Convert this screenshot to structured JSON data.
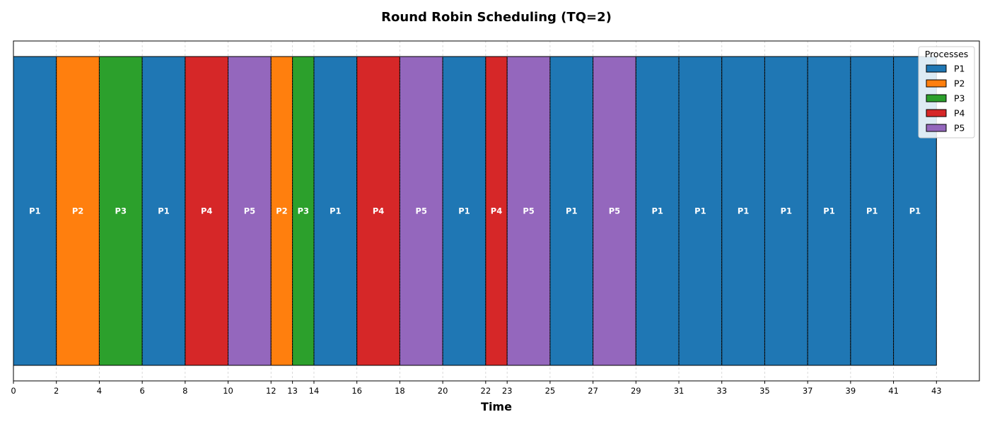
{
  "chart_data": {
    "type": "gantt",
    "title": "Round Robin Scheduling (TQ=2)",
    "xlabel": "Time",
    "ylabel": "",
    "xlim": [
      0,
      45
    ],
    "grid": true,
    "legend": {
      "title": "Processes",
      "placement": "top-right",
      "entries": [
        "P1",
        "P2",
        "P3",
        "P4",
        "P5"
      ]
    },
    "colors": {
      "P1": "#1f77b4",
      "P2": "#ff7f0e",
      "P3": "#2ca02c",
      "P4": "#d62728",
      "P5": "#9467bd"
    },
    "xticks": [
      0,
      2,
      4,
      6,
      8,
      10,
      12,
      13,
      14,
      16,
      18,
      20,
      22,
      23,
      25,
      27,
      29,
      31,
      33,
      35,
      37,
      39,
      41,
      43
    ],
    "segments": [
      {
        "process": "P1",
        "start": 0,
        "end": 2
      },
      {
        "process": "P2",
        "start": 2,
        "end": 4
      },
      {
        "process": "P3",
        "start": 4,
        "end": 6
      },
      {
        "process": "P1",
        "start": 6,
        "end": 8
      },
      {
        "process": "P4",
        "start": 8,
        "end": 10
      },
      {
        "process": "P5",
        "start": 10,
        "end": 12
      },
      {
        "process": "P2",
        "start": 12,
        "end": 13
      },
      {
        "process": "P3",
        "start": 13,
        "end": 14
      },
      {
        "process": "P1",
        "start": 14,
        "end": 16
      },
      {
        "process": "P4",
        "start": 16,
        "end": 18
      },
      {
        "process": "P5",
        "start": 18,
        "end": 20
      },
      {
        "process": "P1",
        "start": 20,
        "end": 22
      },
      {
        "process": "P4",
        "start": 22,
        "end": 23
      },
      {
        "process": "P5",
        "start": 23,
        "end": 25
      },
      {
        "process": "P1",
        "start": 25,
        "end": 27
      },
      {
        "process": "P5",
        "start": 27,
        "end": 29
      },
      {
        "process": "P1",
        "start": 29,
        "end": 31
      },
      {
        "process": "P1",
        "start": 31,
        "end": 33
      },
      {
        "process": "P1",
        "start": 33,
        "end": 35
      },
      {
        "process": "P1",
        "start": 35,
        "end": 37
      },
      {
        "process": "P1",
        "start": 37,
        "end": 39
      },
      {
        "process": "P1",
        "start": 39,
        "end": 41
      },
      {
        "process": "P1",
        "start": 41,
        "end": 43
      }
    ]
  }
}
